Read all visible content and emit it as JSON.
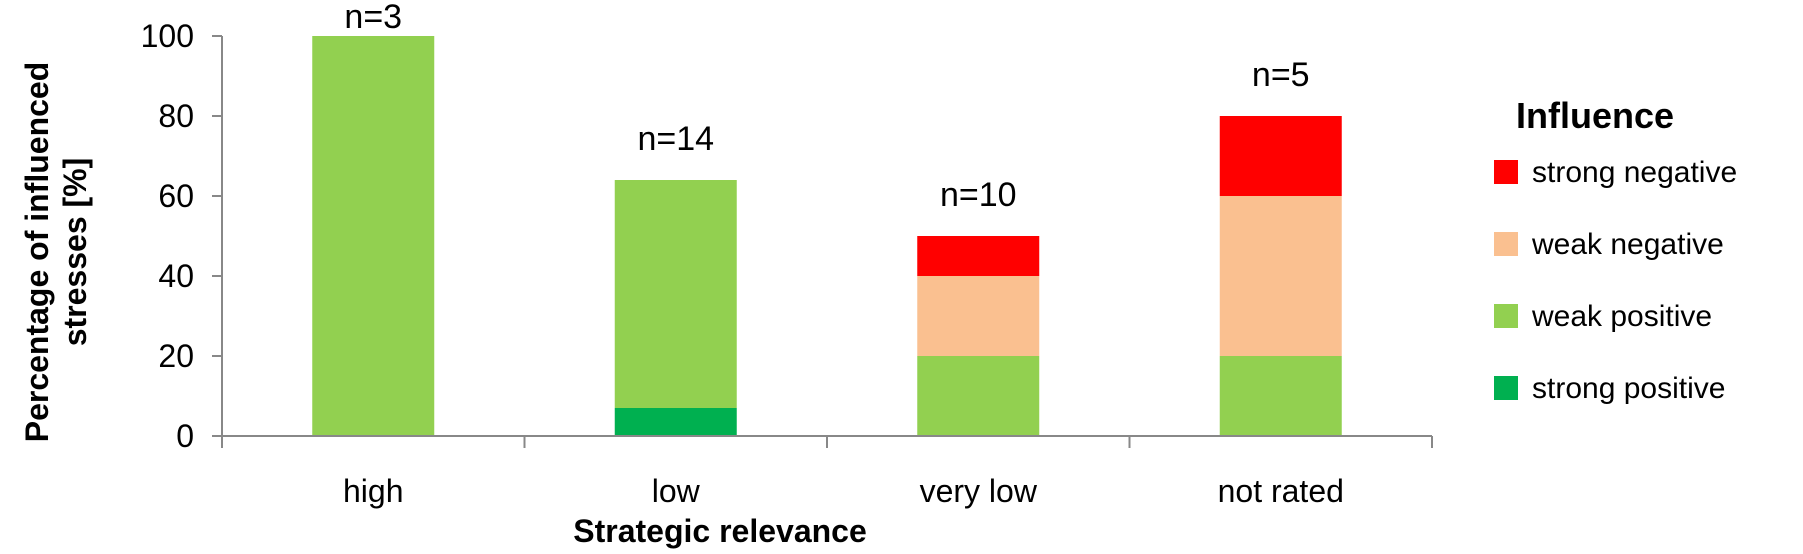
{
  "chart_data": {
    "type": "bar",
    "stacked": true,
    "categories": [
      "high",
      "low",
      "very low",
      "not rated"
    ],
    "series": [
      {
        "name": "strong positive",
        "color": "#00B050",
        "values": [
          0,
          7,
          0,
          0
        ]
      },
      {
        "name": "weak positive",
        "color": "#92D050",
        "values": [
          100,
          57,
          20,
          20
        ]
      },
      {
        "name": "weak negative",
        "color": "#FAC090",
        "values": [
          0,
          0,
          20,
          40
        ]
      },
      {
        "name": "strong negative",
        "color": "#FF0000",
        "values": [
          0,
          0,
          10,
          20
        ]
      }
    ],
    "annotations": [
      "n=3",
      "n=14",
      "n=10",
      "n=5"
    ],
    "xlabel": "Strategic relevance",
    "ylabel_lines": [
      "Percentage of influenced",
      "stresses [%]"
    ],
    "ylim": [
      0,
      100
    ],
    "yticks": [
      0,
      20,
      40,
      60,
      80,
      100
    ],
    "grid": false,
    "legend": {
      "title": "Influence",
      "placement": "right",
      "order": [
        "strong negative",
        "weak negative",
        "weak positive",
        "strong positive"
      ]
    }
  }
}
